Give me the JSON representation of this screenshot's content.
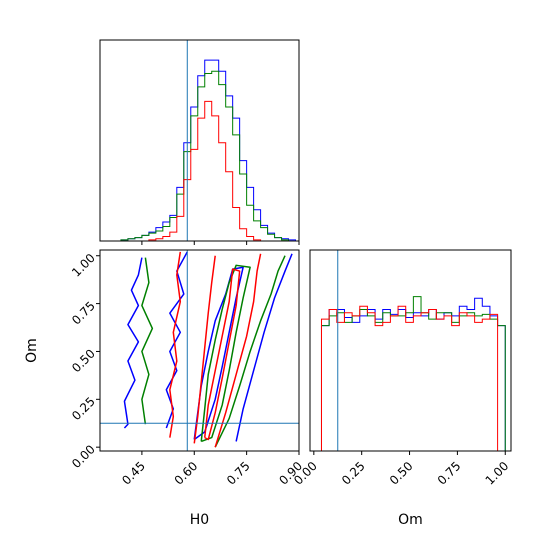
{
  "chart_data": {
    "type": "corner",
    "parameters": [
      "H0",
      "Om"
    ],
    "truth": {
      "H0": 0.58,
      "Om": 0.125
    },
    "colors": {
      "blue": "#0000ff",
      "green": "#008000",
      "red": "#ff0000",
      "truth": "#1f77b4"
    },
    "axes": {
      "h0": {
        "label": "H0",
        "range": [
          0.33,
          0.9
        ],
        "ticks": [
          "0.45",
          "0.60",
          "0.75",
          "0.90"
        ],
        "tick_values": [
          0.45,
          0.6,
          0.75,
          0.9
        ]
      },
      "om": {
        "label": "Om",
        "range": [
          -0.02,
          1.03
        ],
        "ticks": [
          "0.00",
          "0.25",
          "0.50",
          "0.75",
          "1.00"
        ],
        "tick_values": [
          0.0,
          0.25,
          0.5,
          0.75,
          1.0
        ]
      }
    },
    "h0_histogram": {
      "bin_edges": [
        0.33,
        0.35,
        0.37,
        0.39,
        0.41,
        0.43,
        0.45,
        0.47,
        0.49,
        0.51,
        0.53,
        0.55,
        0.57,
        0.59,
        0.61,
        0.63,
        0.65,
        0.67,
        0.69,
        0.71,
        0.73,
        0.75,
        0.77,
        0.79,
        0.81,
        0.83,
        0.85,
        0.87,
        0.89
      ],
      "ymax": 180,
      "series": [
        {
          "color": "blue",
          "counts": [
            0,
            0,
            0,
            1,
            2,
            3,
            5,
            8,
            12,
            17,
            23,
            48,
            88,
            120,
            148,
            162,
            162,
            152,
            130,
            110,
            72,
            48,
            28,
            14,
            7,
            3,
            2,
            1
          ]
        },
        {
          "color": "green",
          "counts": [
            0,
            0,
            0,
            1,
            2,
            3,
            5,
            7,
            9,
            13,
            21,
            42,
            80,
            112,
            138,
            150,
            152,
            140,
            120,
            95,
            60,
            32,
            18,
            12,
            6,
            3,
            1,
            0
          ]
        },
        {
          "color": "red",
          "counts": [
            0,
            0,
            0,
            0,
            0,
            0,
            0,
            1,
            2,
            4,
            8,
            22,
            55,
            82,
            110,
            125,
            112,
            88,
            62,
            30,
            11,
            4,
            1,
            0,
            0,
            0,
            0,
            0
          ]
        }
      ]
    },
    "om_histogram": {
      "bin_edges": [
        0.0,
        0.04,
        0.08,
        0.12,
        0.16,
        0.2,
        0.24,
        0.28,
        0.32,
        0.36,
        0.4,
        0.44,
        0.48,
        0.52,
        0.56,
        0.6,
        0.64,
        0.68,
        0.72,
        0.76,
        0.8,
        0.84,
        0.88,
        0.92,
        0.96,
        1.0
      ],
      "ymax": 125,
      "series": [
        {
          "color": "blue",
          "counts": [
            0,
            78,
            88,
            88,
            83,
            80,
            84,
            88,
            82,
            88,
            85,
            88,
            83,
            86,
            84,
            88,
            82,
            86,
            84,
            90,
            88,
            95,
            90,
            84,
            78
          ]
        },
        {
          "color": "green",
          "counts": [
            0,
            78,
            84,
            86,
            80,
            84,
            88,
            84,
            80,
            86,
            84,
            84,
            86,
            96,
            86,
            82,
            86,
            86,
            80,
            84,
            86,
            84,
            85,
            82,
            78
          ]
        },
        {
          "color": "red",
          "counts": [
            0,
            82,
            88,
            80,
            86,
            84,
            90,
            86,
            78,
            80,
            84,
            90,
            80,
            84,
            86,
            88,
            82,
            84,
            78,
            86,
            84,
            80,
            82,
            85,
            0
          ]
        }
      ]
    },
    "contours": [
      {
        "color": "blue",
        "points": [
          [
            0.45,
            0.99
          ],
          [
            0.44,
            0.9
          ],
          [
            0.42,
            0.82
          ],
          [
            0.44,
            0.74
          ],
          [
            0.41,
            0.64
          ],
          [
            0.44,
            0.55
          ],
          [
            0.41,
            0.45
          ],
          [
            0.43,
            0.35
          ],
          [
            0.4,
            0.24
          ],
          [
            0.41,
            0.12
          ],
          [
            0.4,
            0.1
          ]
        ]
      },
      {
        "color": "blue",
        "points": [
          [
            0.58,
            1.02
          ],
          [
            0.55,
            0.92
          ],
          [
            0.57,
            0.8
          ],
          [
            0.53,
            0.7
          ],
          [
            0.56,
            0.6
          ],
          [
            0.53,
            0.5
          ],
          [
            0.55,
            0.4
          ],
          [
            0.52,
            0.3
          ],
          [
            0.54,
            0.2
          ],
          [
            0.52,
            0.1
          ]
        ]
      },
      {
        "color": "blue",
        "points": [
          [
            0.6,
            0.04
          ],
          [
            0.61,
            0.18
          ],
          [
            0.62,
            0.32
          ],
          [
            0.64,
            0.5
          ],
          [
            0.66,
            0.66
          ],
          [
            0.69,
            0.8
          ],
          [
            0.71,
            0.93
          ],
          [
            0.74,
            0.94
          ],
          [
            0.72,
            0.78
          ],
          [
            0.7,
            0.6
          ],
          [
            0.68,
            0.42
          ],
          [
            0.66,
            0.25
          ],
          [
            0.63,
            0.08
          ],
          [
            0.6,
            0.04
          ]
        ]
      },
      {
        "color": "blue",
        "points": [
          [
            0.72,
            0.03
          ],
          [
            0.74,
            0.2
          ],
          [
            0.77,
            0.4
          ],
          [
            0.8,
            0.6
          ],
          [
            0.83,
            0.78
          ],
          [
            0.86,
            0.92
          ],
          [
            0.88,
            1.01
          ]
        ]
      },
      {
        "color": "green",
        "points": [
          [
            0.46,
            0.99
          ],
          [
            0.47,
            0.86
          ],
          [
            0.45,
            0.74
          ],
          [
            0.48,
            0.62
          ],
          [
            0.45,
            0.5
          ],
          [
            0.47,
            0.38
          ],
          [
            0.45,
            0.25
          ],
          [
            0.46,
            0.12
          ]
        ]
      },
      {
        "color": "green",
        "points": [
          [
            0.62,
            0.03
          ],
          [
            0.63,
            0.2
          ],
          [
            0.64,
            0.38
          ],
          [
            0.66,
            0.56
          ],
          [
            0.68,
            0.72
          ],
          [
            0.7,
            0.86
          ],
          [
            0.72,
            0.95
          ],
          [
            0.76,
            0.94
          ],
          [
            0.74,
            0.78
          ],
          [
            0.72,
            0.6
          ],
          [
            0.7,
            0.4
          ],
          [
            0.68,
            0.22
          ],
          [
            0.65,
            0.05
          ],
          [
            0.62,
            0.03
          ]
        ]
      },
      {
        "color": "green",
        "points": [
          [
            0.66,
            0.0
          ],
          [
            0.7,
            0.15
          ],
          [
            0.73,
            0.32
          ],
          [
            0.76,
            0.5
          ],
          [
            0.79,
            0.66
          ],
          [
            0.82,
            0.8
          ],
          [
            0.84,
            0.92
          ],
          [
            0.86,
            1.0
          ]
        ]
      },
      {
        "color": "red",
        "points": [
          [
            0.56,
            1.02
          ],
          [
            0.55,
            0.9
          ],
          [
            0.56,
            0.76
          ],
          [
            0.54,
            0.6
          ],
          [
            0.55,
            0.45
          ],
          [
            0.53,
            0.3
          ],
          [
            0.54,
            0.16
          ],
          [
            0.53,
            0.05
          ]
        ]
      },
      {
        "color": "red",
        "points": [
          [
            0.6,
            0.02
          ],
          [
            0.61,
            0.16
          ],
          [
            0.62,
            0.34
          ],
          [
            0.63,
            0.52
          ],
          [
            0.64,
            0.7
          ],
          [
            0.65,
            0.86
          ],
          [
            0.66,
            1.0
          ]
        ]
      },
      {
        "color": "red",
        "points": [
          [
            0.63,
            0.05
          ],
          [
            0.64,
            0.22
          ],
          [
            0.66,
            0.4
          ],
          [
            0.68,
            0.58
          ],
          [
            0.7,
            0.76
          ],
          [
            0.71,
            0.93
          ],
          [
            0.73,
            0.92
          ],
          [
            0.72,
            0.74
          ],
          [
            0.7,
            0.55
          ],
          [
            0.68,
            0.36
          ],
          [
            0.66,
            0.18
          ],
          [
            0.64,
            0.04
          ],
          [
            0.63,
            0.05
          ]
        ]
      },
      {
        "color": "red",
        "points": [
          [
            0.66,
            0.0
          ],
          [
            0.69,
            0.18
          ],
          [
            0.72,
            0.38
          ],
          [
            0.75,
            0.58
          ],
          [
            0.77,
            0.76
          ],
          [
            0.78,
            0.92
          ],
          [
            0.79,
            1.01
          ]
        ]
      }
    ]
  }
}
